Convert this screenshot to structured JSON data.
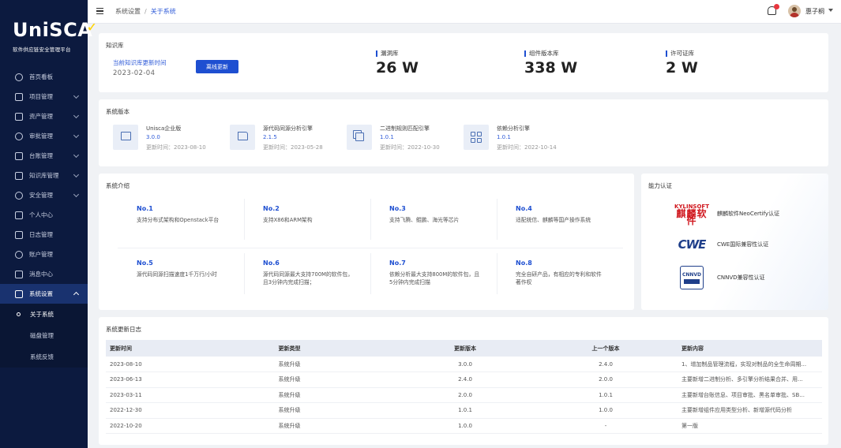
{
  "app": {
    "logo_text": "UniSCA",
    "logo_subtitle": "软件供应链安全管理平台"
  },
  "sidebar": {
    "items": [
      {
        "label": "首页看板",
        "icon": "dashboard-icon",
        "expandable": false
      },
      {
        "label": "项目管理",
        "icon": "folder-icon",
        "expandable": true
      },
      {
        "label": "资产管理",
        "icon": "asset-icon",
        "expandable": true
      },
      {
        "label": "审批管理",
        "icon": "approval-icon",
        "expandable": true
      },
      {
        "label": "台账管理",
        "icon": "ledger-icon",
        "expandable": true
      },
      {
        "label": "知识库管理",
        "icon": "book-icon",
        "expandable": true
      },
      {
        "label": "安全管理",
        "icon": "shield-icon",
        "expandable": true
      },
      {
        "label": "个人中心",
        "icon": "user-icon",
        "expandable": false
      },
      {
        "label": "日志管理",
        "icon": "log-icon",
        "expandable": false
      },
      {
        "label": "账户管理",
        "icon": "account-icon",
        "expandable": false
      },
      {
        "label": "消息中心",
        "icon": "bell-icon",
        "expandable": false
      },
      {
        "label": "系统设置",
        "icon": "settings-icon",
        "expandable": true,
        "active": true
      }
    ],
    "subitems": [
      {
        "label": "关于系统",
        "current": true
      },
      {
        "label": "磁盘管理"
      },
      {
        "label": "系统反馈"
      }
    ]
  },
  "header": {
    "breadcrumb": [
      "系统设置",
      "关于系统"
    ],
    "separator": "/",
    "username": "惠子桐"
  },
  "knowledge": {
    "title": "知识库",
    "update_label": "当前知识库更新时间",
    "update_date": "2023-02-04",
    "offline_button": "离线更新",
    "stats": [
      {
        "label": "漏洞库",
        "value": "26 W"
      },
      {
        "label": "组件版本库",
        "value": "338 W"
      },
      {
        "label": "许可证库",
        "value": "2 W"
      }
    ]
  },
  "versions": {
    "title": "系统版本",
    "items": [
      {
        "name": "Unisca企业版",
        "version": "3.0.0",
        "time": "更新时间：2023-08-10",
        "icon": "monitor-icon"
      },
      {
        "name": "源代码同源分析引擎",
        "version": "2.1.5",
        "time": "更新时间：2023-05-28",
        "icon": "code-analysis-icon"
      },
      {
        "name": "二进制规则匹配引擎",
        "version": "1.0.1",
        "time": "更新时间：2022-10-30",
        "icon": "binary-icon"
      },
      {
        "name": "依赖分析引擎",
        "version": "1.0.1",
        "time": "更新时间：2022-10-14",
        "icon": "grid-icon"
      }
    ]
  },
  "intro": {
    "title": "系统介绍",
    "items": [
      {
        "no": "No.1",
        "text": "支持分布式架构和Openstack平台"
      },
      {
        "no": "No.2",
        "text": "支持X86和ARM架构"
      },
      {
        "no": "No.3",
        "text": "支持飞腾、鲲鹏、海光等芯片"
      },
      {
        "no": "No.4",
        "text": "适配统信、麒麟等国产操作系统"
      },
      {
        "no": "No.5",
        "text": "源代码同源扫描速度1千万行/小时"
      },
      {
        "no": "No.6",
        "text": "源代码同源最大支持700M的软件包，且3分钟内完成扫描；"
      },
      {
        "no": "No.7",
        "text": "依赖分析最大支持800M的软件包，且5分钟内完成扫描"
      },
      {
        "no": "No.8",
        "text": "完全自研产品，有相应的专利和软件著作权"
      }
    ]
  },
  "certs": {
    "title": "能力认证",
    "items": [
      {
        "logo_line1": "KYLINSOFT",
        "logo_line2": "麒麟软件",
        "name": "麒麟软件NeoCertify认证",
        "icon": "kylinsoft-logo"
      },
      {
        "logo_line1": "CWE",
        "name": "CWE国际兼容性认证",
        "icon": "cwe-logo"
      },
      {
        "logo_line1": "CNNVD",
        "name": "CNNVD兼容性认证",
        "icon": "cnnvd-logo"
      }
    ]
  },
  "changelog": {
    "title": "系统更新日志",
    "columns": [
      "更新时间",
      "更新类型",
      "更新版本",
      "上一个版本",
      "更新内容"
    ],
    "rows": [
      [
        "2023-08-10",
        "系统升级",
        "3.0.0",
        "2.4.0",
        "1、增加制品管理流程，实现对制品的全生命周期..."
      ],
      [
        "2023-06-13",
        "系统升级",
        "2.4.0",
        "2.0.0",
        "主要新增二进制分析、多引擎分析结果合并、用..."
      ],
      [
        "2023-03-11",
        "系统升级",
        "2.0.0",
        "1.0.1",
        "主要新增台账信息、项目审批、黑名单审批、SB..."
      ],
      [
        "2022-12-30",
        "系统升级",
        "1.0.1",
        "1.0.0",
        "主要新增组件应用类型分析、新增源代码分析"
      ],
      [
        "2022-10-20",
        "系统升级",
        "1.0.0",
        "-",
        "第一版"
      ]
    ]
  },
  "colors": {
    "sidebar_bg": "#0c1a3f",
    "accent": "#1e4fd1",
    "link": "#2f5bd8",
    "badge_red": "#e8363e"
  }
}
